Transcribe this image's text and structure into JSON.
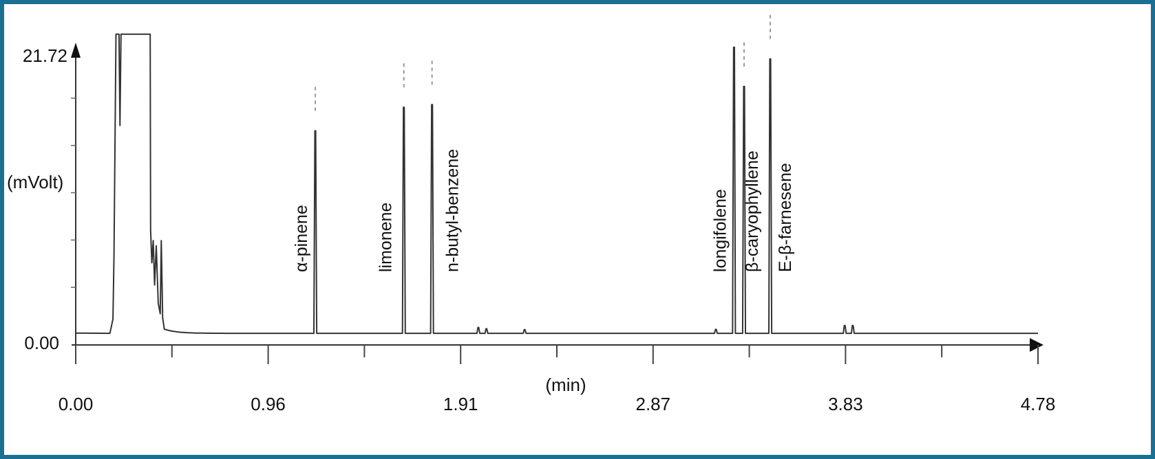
{
  "chart_data": {
    "type": "line",
    "title": "",
    "xlabel": "(min)",
    "ylabel": "(mVolt)",
    "xlim": [
      0.0,
      4.78
    ],
    "ylim": [
      0.0,
      21.72
    ],
    "x_ticks": [
      "0.00",
      "0.96",
      "1.91",
      "2.87",
      "3.83",
      "4.78"
    ],
    "y_ticks": [
      "0.00",
      "21.72"
    ],
    "grid": false,
    "legend": "none",
    "colors": {
      "frame": "#1a6f93",
      "trace": "#333333"
    },
    "peaks": [
      {
        "name": "α-pinene",
        "rt": 1.19,
        "height": 15.6
      },
      {
        "name": "limonene",
        "rt": 1.63,
        "height": 17.4
      },
      {
        "name": "n-butyl-benzene",
        "rt": 1.77,
        "height": 17.6
      },
      {
        "name": "longifolene",
        "rt": 3.27,
        "height": 22.0
      },
      {
        "name": "β-caryophyllene",
        "rt": 3.32,
        "height": 19.0
      },
      {
        "name": "E-β-farnesene",
        "rt": 3.45,
        "height": 21.1
      }
    ]
  }
}
